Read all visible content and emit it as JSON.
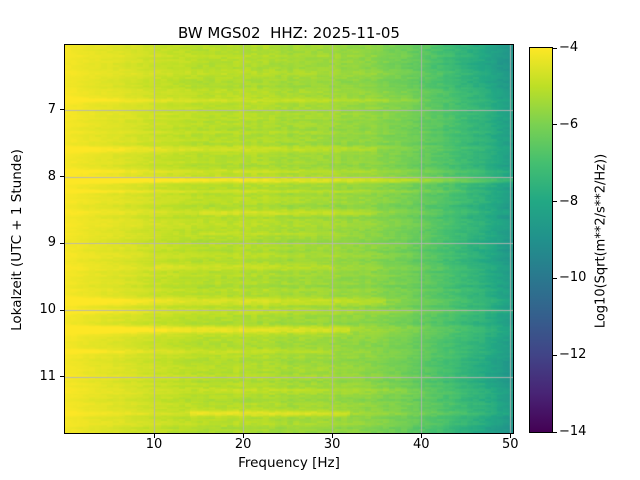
{
  "chart_data": {
    "type": "heatmap",
    "subtype": "spectrogram",
    "title": "BW MGS02  HHZ: 2025-11-05",
    "xlabel": "Frequency [Hz]",
    "ylabel": "Lokalzeit (UTC + 1 Stunde)",
    "xlim": [
      0,
      50.3
    ],
    "ylim_hours": [
      6.03,
      11.84
    ],
    "x_ticks": [
      10,
      20,
      30,
      40,
      50
    ],
    "x_tick_labels": [
      "10",
      "20",
      "30",
      "40",
      "50"
    ],
    "y_ticks": [
      7,
      8,
      9,
      10,
      11
    ],
    "y_tick_labels": [
      "7",
      "8",
      "9",
      "10",
      "11"
    ],
    "grid": true,
    "grid_color": "#b4b4b4",
    "colorbar": {
      "label": "Log10(Sqrt(m**2/s**2/Hz))",
      "colormap": "viridis",
      "vmin": -14,
      "vmax": -4,
      "ticks": [
        -4,
        -6,
        -8,
        -10,
        -12,
        -14
      ],
      "tick_labels": [
        "−4",
        "−6",
        "−8",
        "−10",
        "−12",
        "−14"
      ]
    },
    "colormap_stops": [
      [
        0.0,
        "#440154"
      ],
      [
        0.1,
        "#482475"
      ],
      [
        0.2,
        "#414487"
      ],
      [
        0.3,
        "#355f8d"
      ],
      [
        0.4,
        "#2a788e"
      ],
      [
        0.5,
        "#21918c"
      ],
      [
        0.6,
        "#22a884"
      ],
      [
        0.7,
        "#44bf70"
      ],
      [
        0.8,
        "#7ad151"
      ],
      [
        0.9,
        "#bddf26"
      ],
      [
        1.0,
        "#fde725"
      ]
    ],
    "freq_profile_log10": [
      [
        0,
        -4.1
      ],
      [
        2,
        -4.25
      ],
      [
        5,
        -4.45
      ],
      [
        9,
        -4.75
      ],
      [
        13,
        -5.0
      ],
      [
        18,
        -5.15
      ],
      [
        24,
        -5.3
      ],
      [
        30,
        -5.5
      ],
      [
        35,
        -5.75
      ],
      [
        39,
        -6.15
      ],
      [
        43,
        -6.8
      ],
      [
        47,
        -7.6
      ],
      [
        50.3,
        -8.4
      ]
    ],
    "time_bands": [
      {
        "hour": 6.85,
        "sigma": 0.035,
        "boost": 0.35,
        "fmin": 0,
        "fmax": 40
      },
      {
        "hour": 7.6,
        "sigma": 0.03,
        "boost": 0.4,
        "fmin": 0,
        "fmax": 35
      },
      {
        "hour": 7.93,
        "sigma": 0.025,
        "boost": 0.45,
        "fmin": 0,
        "fmax": 50.3
      },
      {
        "hour": 8.05,
        "sigma": 0.035,
        "boost": 0.9,
        "fmin": 0,
        "fmax": 50.3
      },
      {
        "hour": 8.22,
        "sigma": 0.025,
        "boost": 0.4,
        "fmin": 0,
        "fmax": 45
      },
      {
        "hour": 8.55,
        "sigma": 0.03,
        "boost": 0.45,
        "fmin": 15,
        "fmax": 35
      },
      {
        "hour": 8.85,
        "sigma": 0.025,
        "boost": 0.3,
        "fmin": 15,
        "fmax": 32
      },
      {
        "hour": 9.35,
        "sigma": 0.03,
        "boost": 0.3,
        "fmin": 10,
        "fmax": 30
      },
      {
        "hour": 9.87,
        "sigma": 0.04,
        "boost": 0.55,
        "fmin": 0,
        "fmax": 36
      },
      {
        "hour": 10.02,
        "sigma": 0.025,
        "boost": 0.4,
        "fmin": 0,
        "fmax": 50.3
      },
      {
        "hour": 10.3,
        "sigma": 0.035,
        "boost": 0.85,
        "fmin": 0,
        "fmax": 32
      },
      {
        "hour": 10.62,
        "sigma": 0.025,
        "boost": 0.4,
        "fmin": 0,
        "fmax": 30
      },
      {
        "hour": 11.2,
        "sigma": 0.02,
        "boost": 0.3,
        "fmin": 15,
        "fmax": 40
      },
      {
        "hour": 11.55,
        "sigma": 0.035,
        "boost": 0.75,
        "fmin": 14,
        "fmax": 32
      }
    ],
    "hf_dark_bands": [
      {
        "hour": 6.25,
        "sigma": 0.3,
        "boost": -0.5
      },
      {
        "hour": 8.6,
        "sigma": 0.2,
        "boost": -0.25
      },
      {
        "hour": 9.2,
        "sigma": 0.18,
        "boost": -0.3
      },
      {
        "hour": 10.95,
        "sigma": 0.2,
        "boost": -0.4
      },
      {
        "hour": 11.8,
        "sigma": 0.15,
        "boost": -0.45
      }
    ],
    "noise": {
      "seed": 42,
      "col_amp": 0.18,
      "row_amp": 0.22,
      "cell_amp": 0.16
    }
  }
}
